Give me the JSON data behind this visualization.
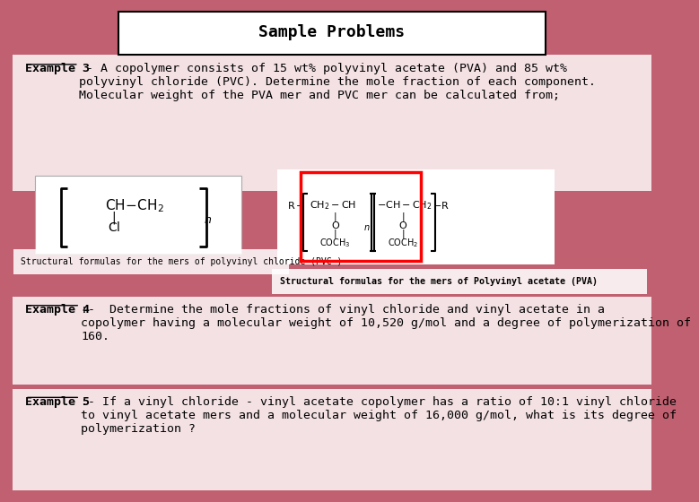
{
  "title": "Sample Problems",
  "background_color": "#c06070",
  "title_box_color": "#ffffff",
  "title_box_edge": "#000000",
  "example3_label": "Example 3",
  "example3_text": " - A copolymer consists of 15 wt% polyvinyl acetate (PVA) and 85 wt%\npolyvinyl chloride (PVC). Determine the mole fraction of each component.\nMolecular weight of the PVA mer and PVC mer can be calculated from;",
  "pvc_caption": "Structural formulas for the mers of polyvinyl chloride (PVC )",
  "pva_caption": "Structural formulas for the mers of Polyvinyl acetate (PVA)",
  "example4_label": "Example 4",
  "example4_text": ":-  Determine the mole fractions of vinyl chloride and vinyl acetate in a\ncopolymer having a molecular weight of 10,520 g/mol and a degree of polymerization of\n160.",
  "example5_label": "Example 5",
  "example5_text": ":- If a vinyl chloride - vinyl acetate copolymer has a ratio of 10:1 vinyl chloride\nto vinyl acetate mers and a molecular weight of 16,000 g/mol, what is its degree of\npolymerization ?"
}
